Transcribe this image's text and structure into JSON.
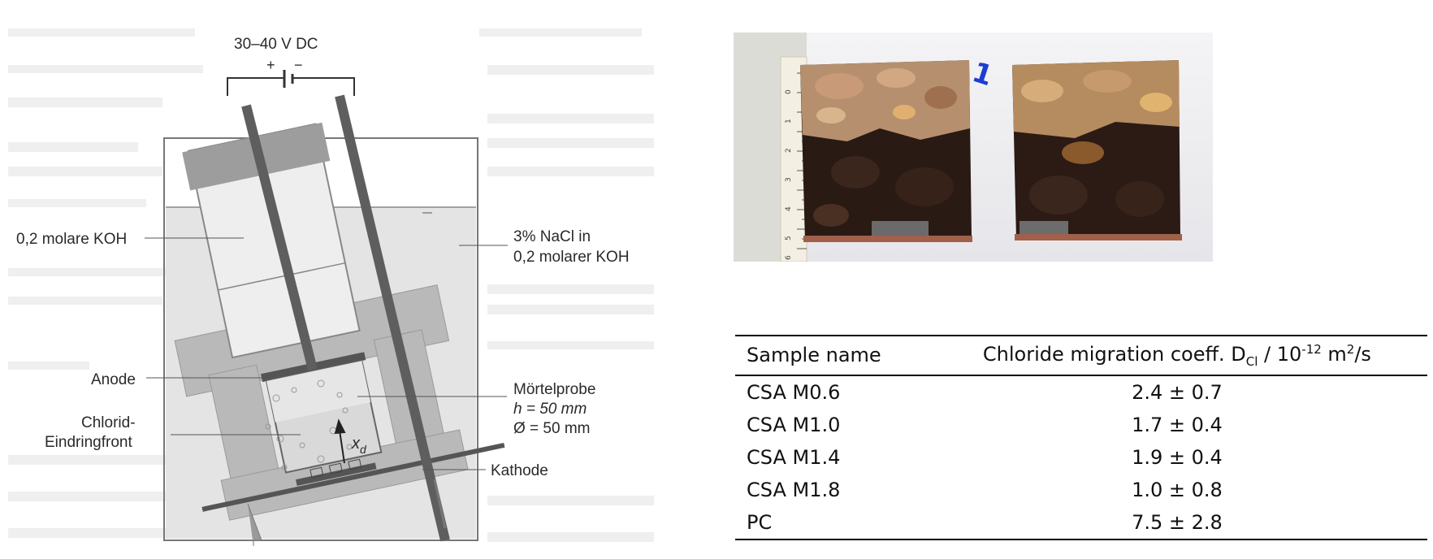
{
  "diagram": {
    "voltage_label": "30–40 V DC",
    "plus": "+",
    "minus": "−",
    "koh_label": "0,2 molare KOH",
    "nacl_label_1": "3% NaCl in",
    "nacl_label_2": "0,2 molarer KOH",
    "anode_label": "Anode",
    "probe_label_1": "Mörtelprobe",
    "probe_label_2": "h  = 50 mm",
    "probe_label_3": "Ø = 50 mm",
    "front_label_1": "Chlorid-",
    "front_label_2": "Eindringfront",
    "kathode_label": "Kathode",
    "xd_label": "x",
    "xd_sub": "d"
  },
  "photo": {
    "marker": "1",
    "ruler_ticks": [
      "0",
      "1",
      "2",
      "3",
      "4",
      "5",
      "6"
    ]
  },
  "table": {
    "header_col1": "Sample name",
    "header_col2_pre": "Chloride migration coeff. D",
    "header_col2_sub": "Cl",
    "header_col2_mid": " / 10",
    "header_col2_sup1": "-12",
    "header_col2_unit": " m",
    "header_col2_sup2": "2",
    "header_col2_end": "/s",
    "rows": [
      {
        "name": "CSA M0.6",
        "value": "2.4 ± 0.7"
      },
      {
        "name": "CSA M1.0",
        "value": "1.7 ± 0.4"
      },
      {
        "name": "CSA M1.4",
        "value": "1.9 ± 0.4"
      },
      {
        "name": "CSA M1.8",
        "value": "1.0 ± 0.8"
      },
      {
        "name": "PC",
        "value": "7.5 ± 2.8"
      }
    ]
  }
}
